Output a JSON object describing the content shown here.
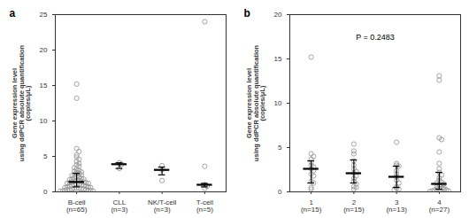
{
  "chart_data": [
    {
      "type": "scatter",
      "title": "a",
      "ylabel": "Gene expression level\nusing ddPCR absolute quantification\n(copies/μL)",
      "categories": [
        "B-cell\n(n=65)",
        "CLL\n(n=3)",
        "NK/T-cell\n(n=3)",
        "T-cell\n(n=5)"
      ],
      "values": [
        [
          15.2,
          13.2,
          6.1,
          5.7,
          5.2,
          4.9,
          4.6,
          4.3,
          4.0,
          3.8,
          3.6,
          3.4,
          3.2,
          3.0,
          2.9,
          2.8,
          2.7,
          2.6,
          2.5,
          2.4,
          2.3,
          2.2,
          2.1,
          2.0,
          1.9,
          1.8,
          1.8,
          1.7,
          1.6,
          1.6,
          1.5,
          1.5,
          1.4,
          1.4,
          1.3,
          1.3,
          1.2,
          1.2,
          1.1,
          1.1,
          1.0,
          1.0,
          0.9,
          0.9,
          0.8,
          0.8,
          0.7,
          0.7,
          0.6,
          0.6,
          0.5,
          0.5,
          0.5,
          0.4,
          0.4,
          0.4,
          0.3,
          0.3,
          0.3,
          0.2,
          0.2,
          0.2,
          0.1,
          0.1,
          0.1
        ],
        [
          4.1,
          3.9,
          3.3
        ],
        [
          3.7,
          3.1,
          1.6
        ],
        [
          24.0,
          3.6,
          1.0,
          0.8,
          0.5
        ]
      ],
      "medians": [
        1.4,
        3.9,
        3.1,
        1.0
      ],
      "error_low": [
        0.7,
        3.3,
        2.4,
        0.7
      ],
      "error_high": [
        2.6,
        4.1,
        3.5,
        1.2
      ],
      "color": "#999999",
      "marker": "circle",
      "ylim": [
        0,
        25
      ],
      "yticks": [
        0,
        5,
        10,
        15,
        20,
        25
      ]
    },
    {
      "type": "scatter",
      "title": "b",
      "ylabel": "Gene expression level\nusing ddPCR absolute quantification\n(copies/μL)",
      "annotation": "P = 0.2483",
      "categories": [
        "1\n(n=15)",
        "2\n(n=15)",
        "3\n(n=13)",
        "4\n(n=27)"
      ],
      "values": [
        [
          15.2,
          4.3,
          4.0,
          3.7,
          3.3,
          3.0,
          2.8,
          2.6,
          2.4,
          2.0,
          1.8,
          1.2,
          1.0,
          0.5,
          0.3
        ],
        [
          5.4,
          4.6,
          4.3,
          3.5,
          3.0,
          2.6,
          2.3,
          2.1,
          1.8,
          1.5,
          1.2,
          0.9,
          0.6,
          0.5,
          0.3
        ],
        [
          5.6,
          3.2,
          3.0,
          2.9,
          2.4,
          2.0,
          1.7,
          1.3,
          1.0,
          0.6,
          0.4,
          0.3,
          0.2
        ],
        [
          13.1,
          12.6,
          6.1,
          5.9,
          4.5,
          3.2,
          2.6,
          2.2,
          1.9,
          1.6,
          1.3,
          1.1,
          1.0,
          0.9,
          0.8,
          0.7,
          0.6,
          0.5,
          0.4,
          0.4,
          0.3,
          0.3,
          0.2,
          0.2,
          0.1,
          0.1,
          0.05
        ]
      ],
      "medians": [
        2.6,
        2.1,
        1.7,
        0.9
      ],
      "error_low": [
        1.0,
        1.0,
        0.5,
        0.3
      ],
      "error_high": [
        3.5,
        3.6,
        2.9,
        2.2
      ],
      "color": "#999999",
      "marker": "circle",
      "ylim": [
        0,
        20
      ],
      "yticks": [
        0,
        5,
        10,
        15,
        20
      ]
    }
  ]
}
